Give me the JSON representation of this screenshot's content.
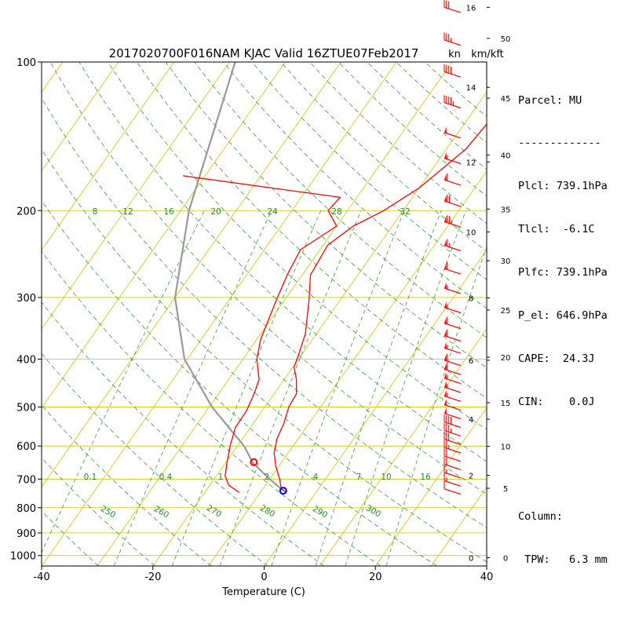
{
  "chart_data": {
    "type": "skew-t",
    "title": "2017020700F016NAM KJAC Valid 16ZTUE07Feb2017",
    "xlabel": "Temperature (C)",
    "x_ticks": [
      -40,
      -20,
      0,
      20,
      40
    ],
    "pressure_ticks": [
      100,
      200,
      300,
      400,
      500,
      600,
      700,
      800,
      900,
      1000
    ],
    "xlim": [
      -40,
      40
    ],
    "plim": [
      1050,
      100
    ],
    "unit_labels": {
      "wind": "kn",
      "height": "km/kft"
    },
    "km_ticks": [
      0,
      2,
      4,
      6,
      8,
      10,
      12,
      14,
      16
    ],
    "kft_ticks": [
      0,
      5,
      10,
      15,
      20,
      25,
      30,
      35,
      40,
      45,
      50
    ],
    "mixing_ratio_labels": [
      "0.1",
      "0.4",
      "1",
      "2",
      "4",
      "7",
      "10",
      "16"
    ],
    "dry_adiabat_labels": [
      "250",
      "260",
      "270",
      "280",
      "290",
      "300"
    ],
    "upper_ratio_labels": [
      "8",
      "12",
      "16",
      "20",
      "24",
      "28",
      "32"
    ],
    "temperature_profile": [
      [
        100,
        -15.5
      ],
      [
        115,
        -16.3
      ],
      [
        130,
        -15.8
      ],
      [
        150,
        -16.5
      ],
      [
        180,
        -20
      ],
      [
        200,
        -23.5
      ],
      [
        215,
        -27
      ],
      [
        235,
        -29.2
      ],
      [
        270,
        -28.5
      ],
      [
        305,
        -25.5
      ],
      [
        355,
        -22
      ],
      [
        385,
        -20.8
      ],
      [
        415,
        -19.8
      ],
      [
        440,
        -17.8
      ],
      [
        470,
        -16
      ],
      [
        500,
        -15.7
      ],
      [
        540,
        -14.5
      ],
      [
        580,
        -13.8
      ],
      [
        620,
        -12.5
      ],
      [
        660,
        -10.5
      ],
      [
        700,
        -8.2
      ],
      [
        730,
        -6.8
      ],
      [
        745,
        -5.4
      ]
    ],
    "dewpoint_profile": [
      [
        170,
        -64
      ],
      [
        188,
        -33
      ],
      [
        200,
        -33.5
      ],
      [
        215,
        -30
      ],
      [
        240,
        -33.5
      ],
      [
        270,
        -32.7
      ],
      [
        300,
        -31.6
      ],
      [
        330,
        -30.5
      ],
      [
        365,
        -29.3
      ],
      [
        400,
        -27.5
      ],
      [
        440,
        -24.5
      ],
      [
        475,
        -23.5
      ],
      [
        510,
        -22.8
      ],
      [
        550,
        -22.7
      ],
      [
        600,
        -21.3
      ],
      [
        650,
        -19.7
      ],
      [
        690,
        -18.4
      ],
      [
        720,
        -16.6
      ],
      [
        745,
        -13.8
      ]
    ],
    "parcel_path": [
      [
        100,
        -69
      ],
      [
        200,
        -58.5
      ],
      [
        300,
        -50
      ],
      [
        400,
        -40.5
      ],
      [
        500,
        -29.5
      ],
      [
        600,
        -18.8
      ],
      [
        650,
        -15
      ],
      [
        700,
        -10
      ],
      [
        739,
        -6.1
      ]
    ],
    "lcl_marker": {
      "p": 739.1,
      "t": -6.1
    },
    "el_marker": {
      "p": 646.9,
      "t": -15
    },
    "wind_barbs": [
      {
        "km": 16,
        "kt": 30
      },
      {
        "km": 15.2,
        "kt": 35
      },
      {
        "km": 14.4,
        "kt": 40
      },
      {
        "km": 13.6,
        "kt": 45
      },
      {
        "km": 12.8,
        "kt": 50
      },
      {
        "km": 12.1,
        "kt": 55
      },
      {
        "km": 11.5,
        "kt": 60
      },
      {
        "km": 10.9,
        "kt": 70
      },
      {
        "km": 10.3,
        "kt": 75
      },
      {
        "km": 9.6,
        "kt": 65
      },
      {
        "km": 8.9,
        "kt": 60
      },
      {
        "km": 8.3,
        "kt": 55
      },
      {
        "km": 7.7,
        "kt": 55
      },
      {
        "km": 7.2,
        "kt": 60
      },
      {
        "km": 6.8,
        "kt": 60
      },
      {
        "km": 6.4,
        "kt": 55
      },
      {
        "km": 6,
        "kt": 60
      },
      {
        "km": 5.7,
        "kt": 60
      },
      {
        "km": 5.4,
        "kt": 55
      },
      {
        "km": 5.1,
        "kt": 55
      },
      {
        "km": 4.8,
        "kt": 55
      },
      {
        "km": 4.5,
        "kt": 50
      },
      {
        "km": 4.2,
        "kt": 50
      },
      {
        "km": 3.9,
        "kt": 40
      },
      {
        "km": 3.6,
        "kt": 35
      },
      {
        "km": 3.3,
        "kt": 30
      },
      {
        "km": 3.0,
        "kt": 25
      },
      {
        "km": 2.7,
        "kt": 20
      },
      {
        "km": 2.4,
        "kt": 20
      },
      {
        "km": 2.1,
        "kt": 15
      },
      {
        "km": 1.8,
        "kt": 15
      },
      {
        "km": 1.5,
        "kt": 10
      }
    ]
  },
  "info_panel": {
    "parcel": "Parcel: MU",
    "separator": "-------------",
    "plcl": "Plcl: 739.1hPa",
    "tlcl": "Tlcl:  -6.1C",
    "plfc": "Plfc: 739.1hPa",
    "p_el": "P_el: 646.9hPa",
    "cape": "CAPE:  24.3J",
    "cin": "CIN:    0.0J",
    "column": "Column:",
    "tpw": " TPW:   6.3 mm"
  },
  "colors": {
    "isobar": "#c8c800",
    "isotherm": "#c8c800",
    "dry_adiabat": "#228b22",
    "mixing_ratio": "#228b22",
    "temperature": "#ff0000",
    "dewpoint": "#ff0000",
    "parcel": "#999999",
    "lcl_marker": "#0000ff",
    "el_marker": "#ff0000",
    "barbs": "#ff0000"
  }
}
